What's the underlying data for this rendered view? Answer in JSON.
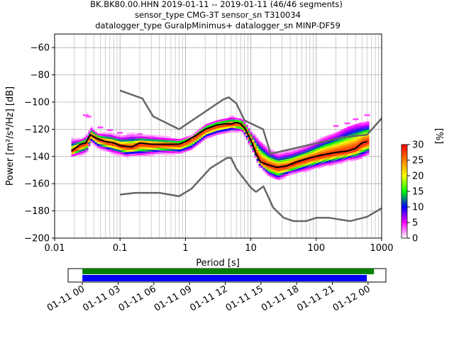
{
  "title_lines": [
    "BK.BK80.00.HHN   2019-01-11 -- 2019-01-11  (46/46 segments)",
    "sensor_type CMG-3T sensor_sn T310034",
    "datalogger_type GuralpMinimus+ datalogger_sn MINP-DF59"
  ],
  "chart_data": {
    "type": "heatmap",
    "xlabel": "Period [s]",
    "ylabel": "Power [m²/s⁴/Hz] [dB]",
    "xscale": "log",
    "xlim": [
      0.01,
      1000
    ],
    "ylim": [
      -200,
      -50
    ],
    "xtick_labels": [
      "0.01",
      "0.1",
      "1",
      "10",
      "100",
      "1000"
    ],
    "xtick_values": [
      0.01,
      0.1,
      1,
      10,
      100,
      1000
    ],
    "ytick_values": [
      -200,
      -180,
      -160,
      -140,
      -120,
      -100,
      -80,
      -60
    ],
    "grid": true,
    "colorbar": {
      "label": "[%]",
      "range": [
        0,
        30
      ],
      "ticks": [
        0,
        5,
        10,
        15,
        20,
        25,
        30
      ],
      "colors": [
        "#ffffff",
        "#ff00ff",
        "#0000ff",
        "#00ff00",
        "#ffff00",
        "#ff8000",
        "#ff0000"
      ]
    },
    "noise_models": [
      {
        "kind": "high",
        "color": "#666666",
        "points": [
          [
            0.1,
            -91.5
          ],
          [
            0.22,
            -97.4
          ],
          [
            0.32,
            -110.5
          ],
          [
            0.8,
            -120
          ],
          [
            3.8,
            -98
          ],
          [
            4.6,
            -96.5
          ],
          [
            6,
            -101
          ],
          [
            8,
            -113.5
          ],
          [
            15.4,
            -120
          ],
          [
            20,
            -138
          ],
          [
            250,
            -126
          ],
          [
            600,
            -124
          ],
          [
            1000,
            -112
          ]
        ]
      },
      {
        "kind": "low",
        "color": "#666666",
        "points": [
          [
            0.1,
            -168
          ],
          [
            0.17,
            -166.7
          ],
          [
            0.4,
            -166.7
          ],
          [
            0.8,
            -169.2
          ],
          [
            1.24,
            -163.7
          ],
          [
            2.4,
            -148.6
          ],
          [
            4.3,
            -141.1
          ],
          [
            5,
            -141.1
          ],
          [
            6,
            -149
          ],
          [
            10,
            -163
          ],
          [
            12,
            -166
          ],
          [
            15.6,
            -162
          ],
          [
            21.9,
            -177.5
          ],
          [
            31.6,
            -185
          ],
          [
            45,
            -187.5
          ],
          [
            70,
            -187.5
          ],
          [
            101,
            -185
          ],
          [
            154,
            -185
          ],
          [
            328,
            -187.5
          ],
          [
            600,
            -184.4
          ],
          [
            1000,
            -178
          ]
        ]
      }
    ],
    "median_color": "#000000",
    "median": [
      [
        0.018,
        -136
      ],
      [
        0.025,
        -131
      ],
      [
        0.03,
        -130
      ],
      [
        0.035,
        -124
      ],
      [
        0.045,
        -127
      ],
      [
        0.06,
        -129
      ],
      [
        0.08,
        -130
      ],
      [
        0.1,
        -132
      ],
      [
        0.15,
        -133
      ],
      [
        0.2,
        -130
      ],
      [
        0.3,
        -131
      ],
      [
        0.5,
        -131
      ],
      [
        0.8,
        -131
      ],
      [
        1,
        -129
      ],
      [
        1.5,
        -124
      ],
      [
        2,
        -120
      ],
      [
        3,
        -117
      ],
      [
        4,
        -116
      ],
      [
        5,
        -116
      ],
      [
        6,
        -115
      ],
      [
        7,
        -116
      ],
      [
        8,
        -119
      ],
      [
        10,
        -128
      ],
      [
        12,
        -138
      ],
      [
        14,
        -144
      ],
      [
        18,
        -146
      ],
      [
        25,
        -148
      ],
      [
        35,
        -147
      ],
      [
        50,
        -144
      ],
      [
        80,
        -141
      ],
      [
        120,
        -139
      ],
      [
        200,
        -137
      ],
      [
        300,
        -136
      ],
      [
        400,
        -134
      ],
      [
        500,
        -130
      ],
      [
        600,
        -129
      ]
    ],
    "band_lower": [
      [
        0.018,
        -138
      ],
      [
        0.03,
        -134
      ],
      [
        0.035,
        -127
      ],
      [
        0.045,
        -131
      ],
      [
        0.07,
        -134
      ],
      [
        0.12,
        -137
      ],
      [
        0.2,
        -136
      ],
      [
        0.4,
        -135
      ],
      [
        0.8,
        -135
      ],
      [
        1.2,
        -132
      ],
      [
        2,
        -124
      ],
      [
        3,
        -121
      ],
      [
        5,
        -119
      ],
      [
        7,
        -119
      ],
      [
        8,
        -123
      ],
      [
        10,
        -132
      ],
      [
        13,
        -145
      ],
      [
        18,
        -151
      ],
      [
        25,
        -154
      ],
      [
        40,
        -150
      ],
      [
        70,
        -147
      ],
      [
        120,
        -144
      ],
      [
        200,
        -142
      ],
      [
        300,
        -140
      ],
      [
        400,
        -139
      ],
      [
        600,
        -135
      ]
    ],
    "band_upper": [
      [
        0.018,
        -130
      ],
      [
        0.025,
        -128
      ],
      [
        0.03,
        -126
      ],
      [
        0.035,
        -120
      ],
      [
        0.045,
        -124
      ],
      [
        0.07,
        -125
      ],
      [
        0.1,
        -127
      ],
      [
        0.2,
        -126
      ],
      [
        0.4,
        -127
      ],
      [
        0.8,
        -128
      ],
      [
        1.2,
        -125
      ],
      [
        2,
        -117
      ],
      [
        3,
        -114
      ],
      [
        5,
        -112
      ],
      [
        7,
        -113
      ],
      [
        8,
        -116
      ],
      [
        10,
        -124
      ],
      [
        13,
        -132
      ],
      [
        18,
        -138
      ],
      [
        25,
        -141
      ],
      [
        40,
        -139
      ],
      [
        70,
        -135
      ],
      [
        120,
        -130
      ],
      [
        200,
        -126
      ],
      [
        300,
        -122
      ],
      [
        400,
        -120
      ],
      [
        600,
        -118
      ]
    ],
    "outliers": [
      [
        0.03,
        -109
      ],
      [
        0.033,
        -110
      ],
      [
        0.05,
        -118
      ],
      [
        0.07,
        -120
      ],
      [
        0.1,
        -122
      ],
      [
        0.2,
        -123
      ],
      [
        0.3,
        -125
      ],
      [
        400,
        -112
      ],
      [
        600,
        -109
      ],
      [
        500,
        -115
      ],
      [
        300,
        -115
      ],
      [
        200,
        -117
      ]
    ],
    "timeline": {
      "xtick_labels": [
        "01-11 00",
        "01-11 03",
        "01-11 06",
        "01-11 09",
        "01-11 12",
        "01-11 15",
        "01-11 18",
        "01-11 21",
        "01-12 00"
      ],
      "data_bar": {
        "color": "#0000ff",
        "start_hour": 0,
        "end_hour": 23.9
      },
      "used_bar": {
        "color": "#008000",
        "start_hour": 0,
        "end_hour": 24.5
      },
      "range_hours": [
        -1.2,
        25.5
      ]
    }
  }
}
